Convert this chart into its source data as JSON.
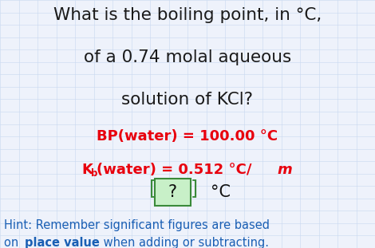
{
  "background_color": "#eef2fb",
  "title_line1": "What is the boiling point, in °C,",
  "title_line2": "of a 0.74 molal aqueous",
  "title_line3": "solution of KCl?",
  "title_color": "#1a1a1a",
  "title_fontsize": 15.5,
  "red_line1": "BP(water) = 100.00 °C",
  "red_color": "#e8000d",
  "red_fontsize": 13,
  "answer_box_color": "#c8f0c8",
  "answer_box_edge": "#3a8a3a",
  "answer_text": "?",
  "answer_unit": "°C",
  "hint_line1": "Hint: Remember significant figures are based",
  "hint_line2_normal": "on ",
  "hint_line2_bold": "place value",
  "hint_line2_end": " when adding or subtracting.",
  "hint_color": "#1a5fb4",
  "hint_fontsize": 10.5,
  "grid_color": "#c8d8f0",
  "grid_linewidth": 0.4
}
